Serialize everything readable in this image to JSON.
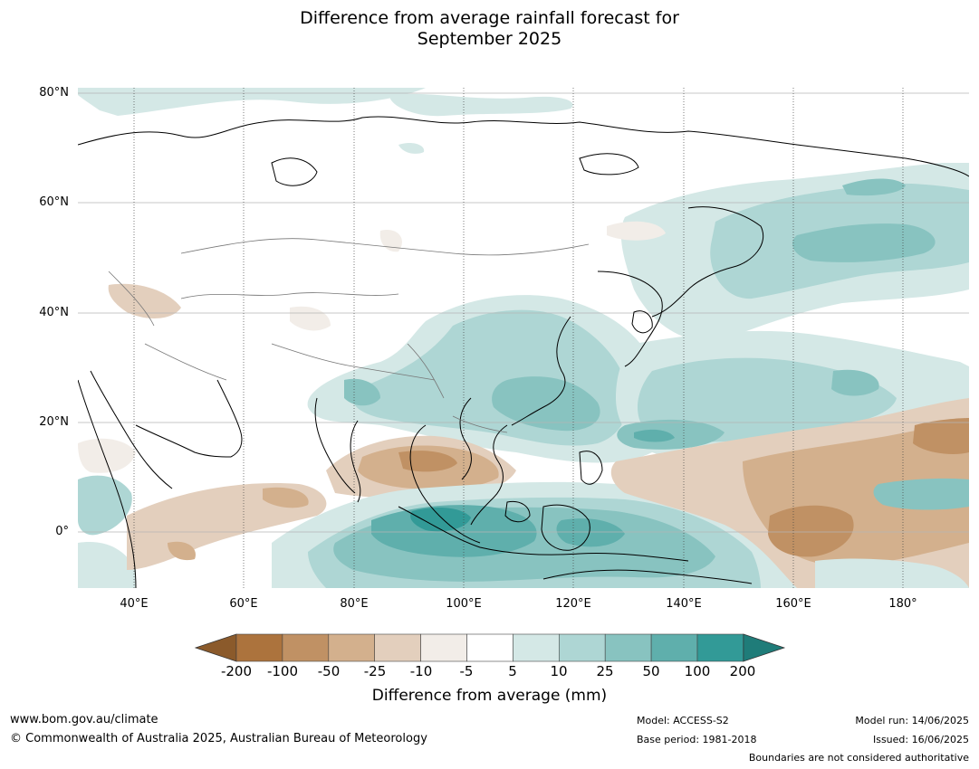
{
  "title_line1": "Difference from average rainfall forecast for",
  "title_line2": "September 2025",
  "latitude_labels": [
    "80°N",
    "60°N",
    "40°N",
    "20°N",
    "0°"
  ],
  "longitude_labels": [
    "40°E",
    "60°E",
    "80°E",
    "100°E",
    "120°E",
    "140°E",
    "160°E",
    "180°"
  ],
  "colorbar": {
    "labels": [
      "-200",
      "-100",
      "-50",
      "-25",
      "-10",
      "-5",
      "5",
      "10",
      "25",
      "50",
      "100",
      "200"
    ],
    "colors": [
      "#8b5a2b",
      "#ac733d",
      "#c09164",
      "#d3b08d",
      "#e3cfbd",
      "#f2ede8",
      "#ffffff",
      "#d4e8e6",
      "#aed6d4",
      "#88c3c0",
      "#5fafac",
      "#329a97",
      "#1f7c79"
    ],
    "title": "Difference from average (mm)"
  },
  "footer": {
    "website": "www.bom.gov.au/climate",
    "copyright": "© Commonwealth of Australia 2025, Australian Bureau of Meteorology",
    "model": "Model: ACCESS-S2",
    "base_period": "Base period: 1981-2018",
    "model_run": "Model run: 14/06/2025",
    "issued": "Issued: 16/06/2025",
    "disclaimer": "Boundaries are not considered authoritative"
  }
}
